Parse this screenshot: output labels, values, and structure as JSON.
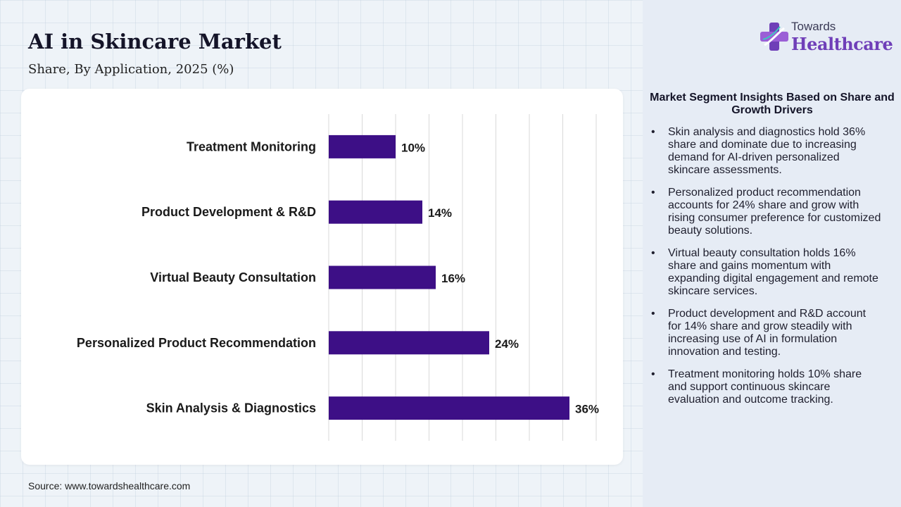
{
  "header": {
    "title": "AI in Skincare Market",
    "subtitle": "Share, By Application, 2025 (%)"
  },
  "logo": {
    "line1": "Towards",
    "line2": "Healthcare"
  },
  "colors": {
    "bar": "#3d0f86",
    "grid": "#d9d9d9",
    "logo_accent": "#6f3fb8"
  },
  "chart_data": {
    "type": "bar",
    "orientation": "horizontal",
    "categories": [
      "Treatment Monitoring",
      "Product Development & R&D",
      "Virtual Beauty Consultation",
      "Personalized Product Recommendation",
      "Skin Analysis & Diagnostics"
    ],
    "values": [
      10,
      14,
      16,
      24,
      36
    ],
    "value_labels": [
      "10%",
      "14%",
      "16%",
      "24%",
      "36%"
    ],
    "unit": "%",
    "xlim": [
      0,
      40
    ],
    "grid": "vertical",
    "legend": "none"
  },
  "insights": {
    "title": "Market Segment Insights Based on Share and Growth Drivers",
    "items": [
      "Skin analysis and diagnostics hold 36% share and dominate due to increasing demand for AI-driven personalized skincare assessments.",
      "Personalized product recommendation accounts for 24% share and grow with rising consumer preference for customized beauty solutions.",
      "Virtual beauty consultation holds 16% share and gains momentum with expanding digital engagement and remote skincare services.",
      "Product development and R&D account for 14% share and grow steadily with increasing use of AI in formulation innovation and testing.",
      "Treatment monitoring holds 10% share and support continuous skincare evaluation and outcome tracking."
    ]
  },
  "footer": {
    "source": "Source: www.towardshealthcare.com"
  }
}
